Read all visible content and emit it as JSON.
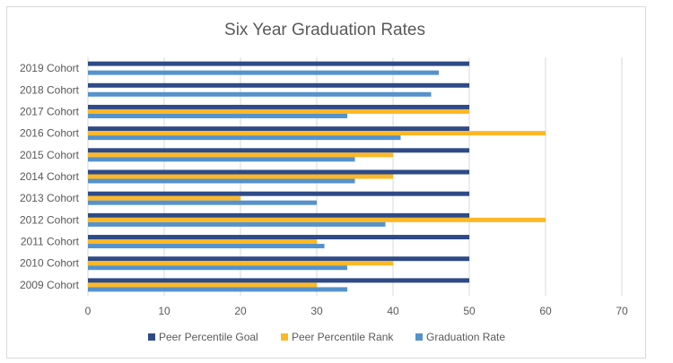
{
  "chart_data": {
    "type": "bar",
    "orientation": "horizontal",
    "title": "Six Year Graduation Rates",
    "categories": [
      "2019 Cohort",
      "2018 Cohort",
      "2017 Cohort",
      "2016 Cohort",
      "2015 Cohort",
      "2014 Cohort",
      "2013 Cohort",
      "2012 Cohort",
      "2011 Cohort",
      "2010 Cohort",
      "2009 Cohort"
    ],
    "series": [
      {
        "name": "Peer Percentile Goal",
        "color": "#2e4a87",
        "values": [
          50,
          50,
          50,
          50,
          50,
          50,
          50,
          50,
          50,
          50,
          50
        ]
      },
      {
        "name": "Peer Percentile Rank",
        "color": "#fdb827",
        "values": [
          null,
          null,
          50,
          60,
          40,
          40,
          20,
          60,
          30,
          40,
          30
        ]
      },
      {
        "name": "Graduation Rate",
        "color": "#5592cc",
        "values": [
          46,
          45,
          34,
          41,
          35,
          35,
          30,
          39,
          31,
          34,
          34
        ]
      }
    ],
    "xlim": [
      0,
      70
    ],
    "xticks": [
      0,
      10,
      20,
      30,
      40,
      50,
      60,
      70
    ],
    "grid": true,
    "legend": "bottom"
  }
}
